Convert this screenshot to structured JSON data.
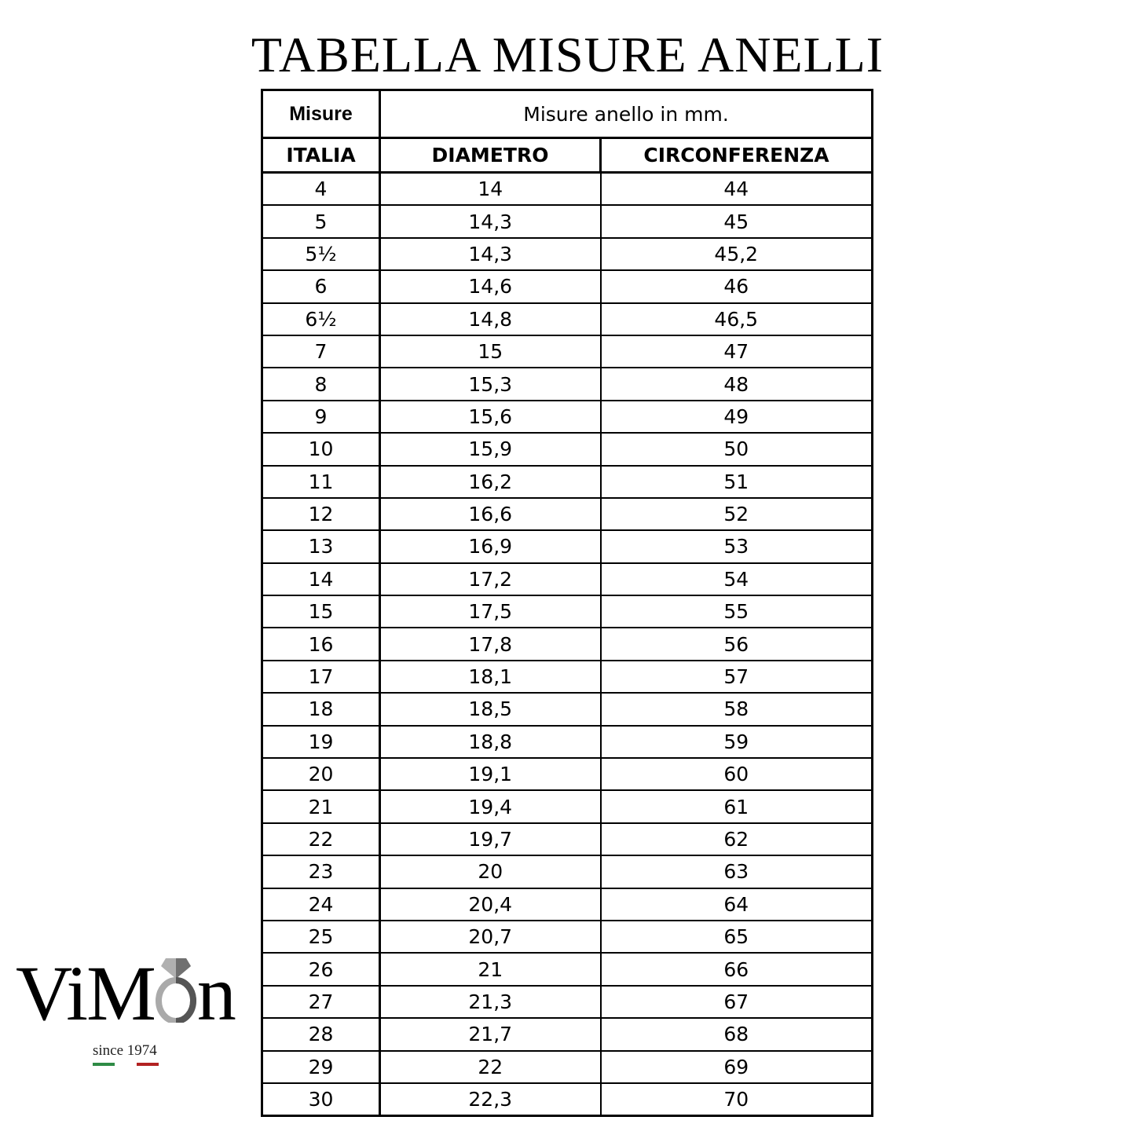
{
  "title": "TABELLA MISURE ANELLI",
  "header": {
    "misure": "Misure",
    "group": "Misure anello in mm.",
    "columns": [
      "ITALIA",
      "DIAMETRO",
      "CIRCONFERENZA"
    ]
  },
  "rows": [
    [
      "4",
      "14",
      "44"
    ],
    [
      "5",
      "14,3",
      "45"
    ],
    [
      "5½",
      "14,3",
      "45,2"
    ],
    [
      "6",
      "14,6",
      "46"
    ],
    [
      "6½",
      "14,8",
      "46,5"
    ],
    [
      "7",
      "15",
      "47"
    ],
    [
      "8",
      "15,3",
      "48"
    ],
    [
      "9",
      "15,6",
      "49"
    ],
    [
      "10",
      "15,9",
      "50"
    ],
    [
      "11",
      "16,2",
      "51"
    ],
    [
      "12",
      "16,6",
      "52"
    ],
    [
      "13",
      "16,9",
      "53"
    ],
    [
      "14",
      "17,2",
      "54"
    ],
    [
      "15",
      "17,5",
      "55"
    ],
    [
      "16",
      "17,8",
      "56"
    ],
    [
      "17",
      "18,1",
      "57"
    ],
    [
      "18",
      "18,5",
      "58"
    ],
    [
      "19",
      "18,8",
      "59"
    ],
    [
      "20",
      "19,1",
      "60"
    ],
    [
      "21",
      "19,4",
      "61"
    ],
    [
      "22",
      "19,7",
      "62"
    ],
    [
      "23",
      "20",
      "63"
    ],
    [
      "24",
      "20,4",
      "64"
    ],
    [
      "25",
      "20,7",
      "65"
    ],
    [
      "26",
      "21",
      "66"
    ],
    [
      "27",
      "21,3",
      "67"
    ],
    [
      "28",
      "21,7",
      "68"
    ],
    [
      "29",
      "22",
      "69"
    ],
    [
      "30",
      "22,3",
      "70"
    ]
  ],
  "logo": {
    "brand": "ViMon",
    "tagline": "since 1974",
    "colors": {
      "green": "#2e8b45",
      "red": "#b22222",
      "ring": "#9a9a9a"
    }
  }
}
